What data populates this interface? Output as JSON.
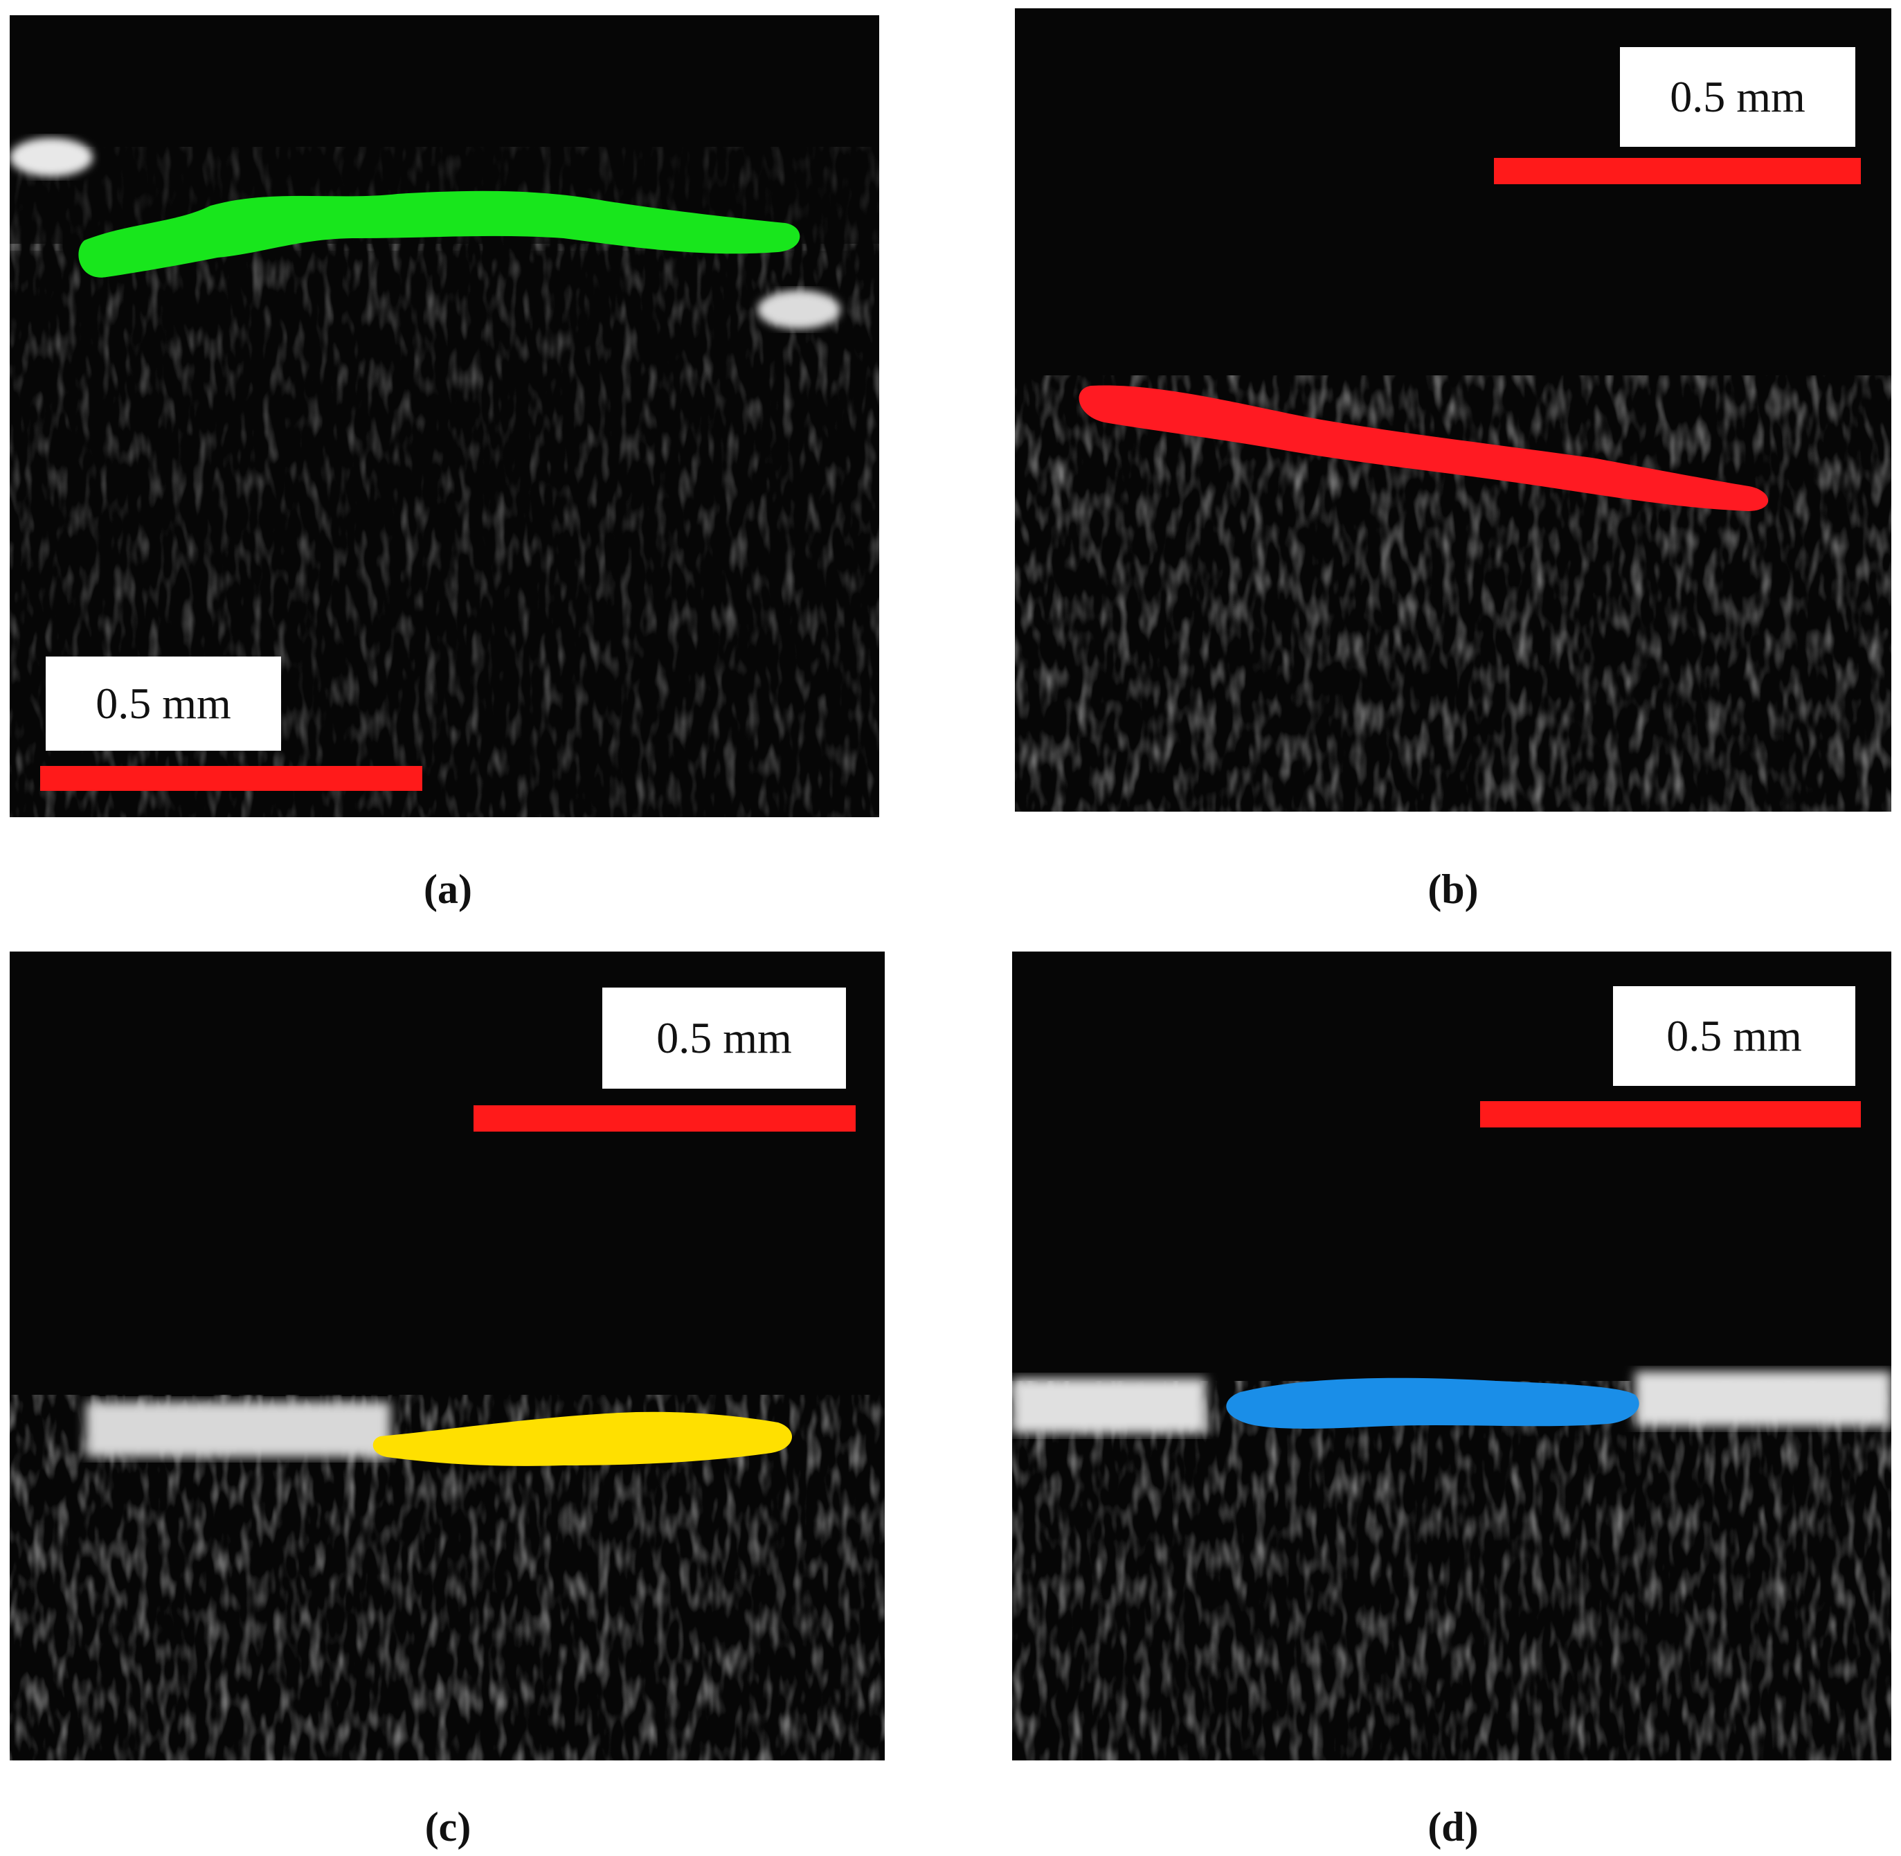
{
  "colors": {
    "panel_background": "#060606",
    "scale_bar": "#ff1a1a",
    "a_overlay": "#18e61c",
    "b_overlay": "#ff1a22",
    "c_overlay": "#ffe000",
    "d_overlay": "#1a8ee8"
  },
  "panels": [
    {
      "id": "a",
      "caption": "(a)",
      "scale_label": "0.5 mm",
      "overlay_icon": "green-segmentation-overlay"
    },
    {
      "id": "b",
      "caption": "(b)",
      "scale_label": "0.5 mm",
      "overlay_icon": "red-segmentation-overlay"
    },
    {
      "id": "c",
      "caption": "(c)",
      "scale_label": "0.5 mm",
      "overlay_icon": "yellow-segmentation-overlay"
    },
    {
      "id": "d",
      "caption": "(d)",
      "scale_label": "0.5 mm",
      "overlay_icon": "blue-segmentation-overlay"
    }
  ]
}
